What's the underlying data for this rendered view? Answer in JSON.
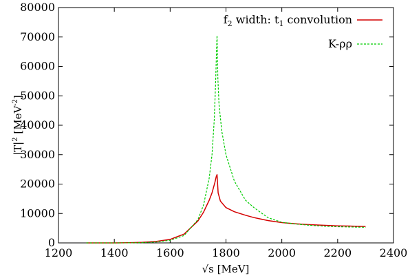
{
  "chart_data": {
    "type": "line",
    "xlabel": "√s [MeV]",
    "ylabel_base": "|T|",
    "ylabel_sup": "2",
    "ylabel_unit": " [MeV",
    "ylabel_unit_sup": "-2",
    "ylabel_close": "]",
    "xlim": [
      1200,
      2400
    ],
    "ylim": [
      0,
      80000
    ],
    "xticks": [
      1200,
      1400,
      1600,
      1800,
      2000,
      2200,
      2400
    ],
    "yticks": [
      0,
      10000,
      20000,
      30000,
      40000,
      50000,
      60000,
      70000,
      80000
    ],
    "grid": false,
    "legend_position": "top-right",
    "series": [
      {
        "name": "f2 width: t1 convolution",
        "legend": {
          "pre": "f",
          "sub1": "2",
          "mid": " width: t",
          "sub2": "1",
          "post": " convolution"
        },
        "color": "#d40000",
        "style": "solid",
        "x": [
          1300,
          1400,
          1450,
          1500,
          1550,
          1600,
          1650,
          1700,
          1720,
          1740,
          1750,
          1760,
          1765,
          1768,
          1772,
          1780,
          1800,
          1830,
          1870,
          1900,
          1950,
          2000,
          2050,
          2100,
          2150,
          2200,
          2250,
          2300
        ],
        "y": [
          0,
          10,
          60,
          200,
          500,
          1200,
          3000,
          7500,
          10500,
          14500,
          17000,
          20500,
          22500,
          23200,
          17000,
          14200,
          12000,
          10600,
          9400,
          8600,
          7600,
          6900,
          6500,
          6200,
          6000,
          5800,
          5700,
          5600
        ]
      },
      {
        "name": "K-ρρ",
        "color": "#00cc00",
        "style": "dashed",
        "x": [
          1300,
          1400,
          1450,
          1500,
          1550,
          1600,
          1650,
          1700,
          1720,
          1740,
          1750,
          1758,
          1763,
          1766,
          1768,
          1771,
          1775,
          1785,
          1800,
          1830,
          1870,
          1900,
          1950,
          2000,
          2050,
          2100,
          2150,
          2200,
          2250,
          2300
        ],
        "y": [
          0,
          5,
          20,
          100,
          300,
          900,
          2500,
          8000,
          13000,
          22000,
          30000,
          42000,
          55000,
          65000,
          70500,
          56000,
          47000,
          38000,
          30000,
          21000,
          14500,
          12000,
          8600,
          7000,
          6400,
          6000,
          5700,
          5500,
          5400,
          5300
        ]
      }
    ]
  }
}
